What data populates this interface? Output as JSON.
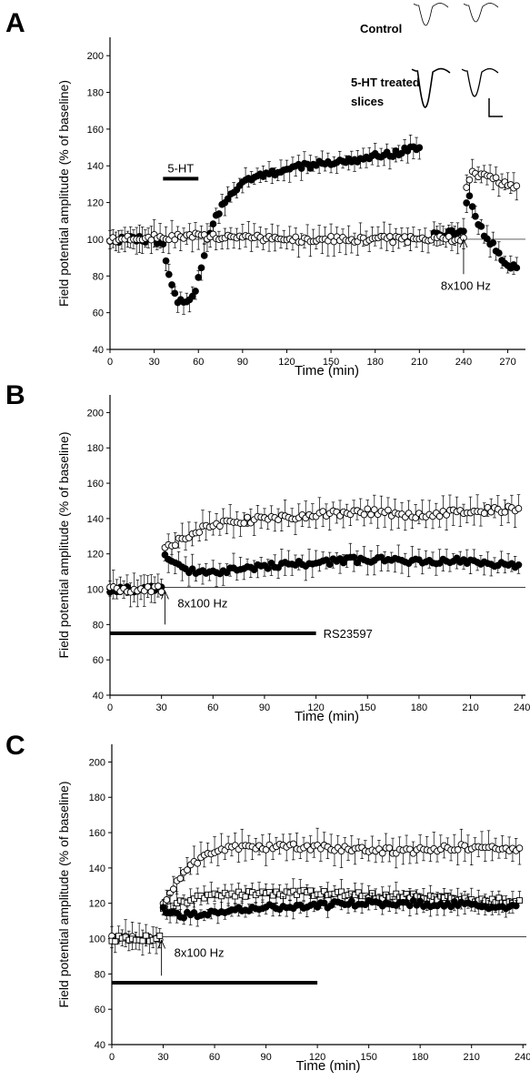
{
  "chart_data": [
    {
      "panel": "A",
      "type": "scatter",
      "xlabel": "Time (min)",
      "ylabel": "Field potential amplitude (% of baseline)",
      "xlim": [
        0,
        282
      ],
      "ylim": [
        40,
        210
      ],
      "xticks": [
        0,
        30,
        60,
        90,
        120,
        150,
        180,
        210,
        240,
        270
      ],
      "yticks": [
        40,
        60,
        80,
        100,
        120,
        140,
        160,
        180,
        200
      ],
      "baseline": 100,
      "series": [
        {
          "marker": "filled",
          "profile": [
            [
              0,
              100
            ],
            [
              30,
              100
            ],
            [
              36,
              97
            ],
            [
              40,
              80
            ],
            [
              45,
              68
            ],
            [
              50,
              64
            ],
            [
              57,
              68
            ],
            [
              62,
              85
            ],
            [
              66,
              100
            ],
            [
              72,
              113
            ],
            [
              80,
              123
            ],
            [
              90,
              131
            ],
            [
              100,
              134
            ],
            [
              120,
              138
            ],
            [
              150,
              142
            ],
            [
              180,
              145
            ],
            [
              200,
              148
            ],
            [
              210,
              150
            ],
            [
              220,
              103
            ],
            [
              235,
              103
            ],
            [
              240,
              103
            ],
            [
              243,
              126
            ],
            [
              248,
              113
            ],
            [
              254,
              103
            ],
            [
              260,
              97
            ],
            [
              268,
              88
            ],
            [
              275,
              84
            ]
          ],
          "segments": [
            [
              0,
              210
            ],
            [
              220,
              240
            ],
            [
              242,
              276
            ]
          ],
          "error": 6
        },
        {
          "marker": "open",
          "profile": [
            [
              0,
              100
            ],
            [
              60,
              102
            ],
            [
              120,
              100
            ],
            [
              180,
              100
            ],
            [
              225,
              100
            ],
            [
              240,
              100
            ],
            [
              242,
              128
            ],
            [
              246,
              136
            ],
            [
              252,
              135
            ],
            [
              260,
              133
            ],
            [
              270,
              130
            ],
            [
              275,
              128
            ]
          ],
          "segments": [
            [
              0,
              240
            ],
            [
              242,
              276
            ]
          ],
          "error": 7
        }
      ],
      "annotations": [
        {
          "text": "5-HT",
          "kind": "bar",
          "x1": 36,
          "x2": 60,
          "y": 133
        },
        {
          "text": "8x100 Hz",
          "kind": "arrow",
          "x": 240,
          "y_tip": 100,
          "y_tail": 81
        }
      ],
      "inset": {
        "control_label": "Control",
        "treated_label_line1": "5-HT treated",
        "treated_label_line2": "slices"
      }
    },
    {
      "panel": "B",
      "type": "scatter",
      "xlabel": "Time (min)",
      "ylabel": "Field potential amplitude (% of baseline)",
      "xlim": [
        0,
        242
      ],
      "ylim": [
        40,
        210
      ],
      "xticks": [
        0,
        30,
        60,
        90,
        120,
        150,
        180,
        210,
        240
      ],
      "yticks": [
        40,
        60,
        80,
        100,
        120,
        140,
        160,
        180,
        200
      ],
      "baseline": 101,
      "series": [
        {
          "marker": "filled",
          "profile": [
            [
              0,
              100
            ],
            [
              30,
              100
            ],
            [
              32,
              118
            ],
            [
              36,
              116
            ],
            [
              45,
              111
            ],
            [
              60,
              110
            ],
            [
              90,
              113
            ],
            [
              120,
              115
            ],
            [
              150,
              117
            ],
            [
              180,
              116
            ],
            [
              210,
              116
            ],
            [
              240,
              112
            ]
          ],
          "segments": [
            [
              0,
              238
            ]
          ],
          "error": 7
        },
        {
          "marker": "open",
          "profile": [
            [
              0,
              100
            ],
            [
              30,
              100
            ],
            [
              32,
              122
            ],
            [
              40,
              128
            ],
            [
              55,
              135
            ],
            [
              70,
              138
            ],
            [
              90,
              140
            ],
            [
              120,
              142
            ],
            [
              150,
              144
            ],
            [
              180,
              142
            ],
            [
              210,
              144
            ],
            [
              240,
              146
            ]
          ],
          "segments": [
            [
              0,
              238
            ]
          ],
          "error": 8
        }
      ],
      "annotations": [
        {
          "text": "8x100 Hz",
          "kind": "arrow",
          "x": 32,
          "y_tip": 99,
          "y_tail": 80
        },
        {
          "text": "RS23597",
          "kind": "bar",
          "x1": 0,
          "x2": 120,
          "y": 75
        }
      ]
    },
    {
      "panel": "C",
      "type": "scatter",
      "xlabel": "Time (min)",
      "ylabel": "Field potential amplitude (% of baseline)",
      "xlim": [
        0,
        242
      ],
      "ylim": [
        40,
        210
      ],
      "xticks": [
        0,
        30,
        60,
        90,
        120,
        150,
        180,
        210,
        240
      ],
      "yticks": [
        40,
        60,
        80,
        100,
        120,
        140,
        160,
        180,
        200
      ],
      "baseline": 101,
      "series": [
        {
          "marker": "open-circle",
          "profile": [
            [
              0,
              100
            ],
            [
              28,
              100
            ],
            [
              30,
              120
            ],
            [
              40,
              135
            ],
            [
              55,
              148
            ],
            [
              70,
              152
            ],
            [
              90,
              152
            ],
            [
              120,
              152
            ],
            [
              150,
              150
            ],
            [
              180,
              150
            ],
            [
              210,
              152
            ],
            [
              240,
              150
            ]
          ],
          "segments": [
            [
              0,
              238
            ]
          ],
          "error": 8
        },
        {
          "marker": "open-square",
          "profile": [
            [
              0,
              100
            ],
            [
              28,
              100
            ],
            [
              30,
              118
            ],
            [
              40,
              120
            ],
            [
              55,
              124
            ],
            [
              70,
              125
            ],
            [
              90,
              125
            ],
            [
              120,
              126
            ],
            [
              150,
              124
            ],
            [
              180,
              124
            ],
            [
              210,
              122
            ],
            [
              240,
              121
            ]
          ],
          "segments": [
            [
              0,
              238
            ]
          ],
          "error": 6
        },
        {
          "marker": "filled",
          "profile": [
            [
              30,
              116
            ],
            [
              40,
              113
            ],
            [
              55,
              114
            ],
            [
              70,
              116
            ],
            [
              90,
              118
            ],
            [
              120,
              119
            ],
            [
              150,
              120
            ],
            [
              180,
              120
            ],
            [
              210,
              119
            ],
            [
              240,
              118
            ]
          ],
          "segments": [
            [
              30,
              236
            ]
          ],
          "error": 5
        }
      ],
      "annotations": [
        {
          "text": "8x100 Hz",
          "kind": "arrow",
          "x": 29,
          "y_tip": 99,
          "y_tail": 79
        },
        {
          "text": "",
          "kind": "bar",
          "x1": 0,
          "x2": 120,
          "y": 75
        }
      ]
    }
  ]
}
